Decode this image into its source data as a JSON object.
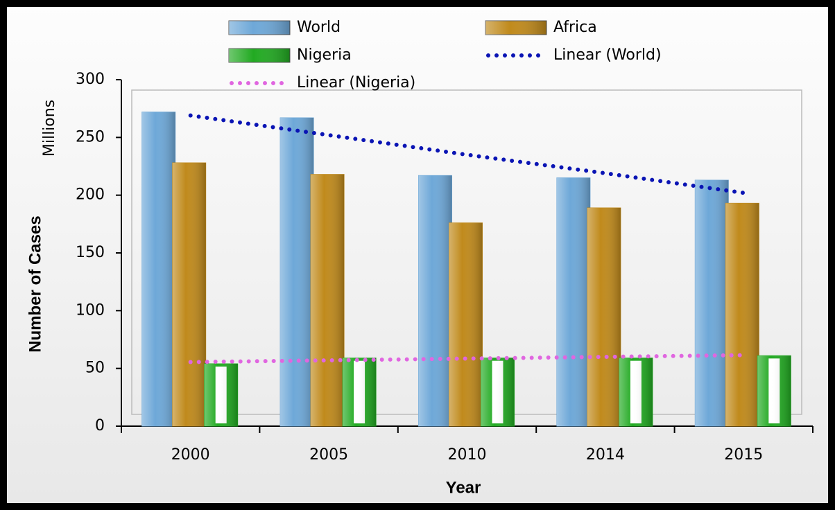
{
  "chart_data": {
    "type": "bar",
    "x_label": "Year",
    "y_label": "Number of Cases",
    "y_unit_label": "Millions",
    "categories": [
      "2000",
      "2005",
      "2010",
      "2014",
      "2015"
    ],
    "series": [
      {
        "name": "World",
        "color": "#6ea8d8",
        "values": [
          272,
          267,
          217,
          215,
          213
        ]
      },
      {
        "name": "Africa",
        "color": "#c08a1c",
        "values": [
          228,
          218,
          176,
          189,
          193
        ]
      },
      {
        "name": "Nigeria",
        "color": "#22aa22",
        "values": [
          54,
          59,
          59,
          59,
          61
        ]
      },
      {
        "name": "Linear (World)",
        "type": "line",
        "style": "dotted",
        "color": "#0a14b4",
        "values": [
          269,
          252,
          235,
          219,
          202
        ]
      },
      {
        "name": "Linear (Nigeria)",
        "type": "line",
        "style": "dotted",
        "color": "#e066e0",
        "values": [
          55.5,
          57,
          58.5,
          60,
          61.5
        ]
      }
    ],
    "ylim": [
      0,
      300
    ],
    "yticks": [
      0,
      50,
      100,
      150,
      200,
      250,
      300
    ]
  }
}
